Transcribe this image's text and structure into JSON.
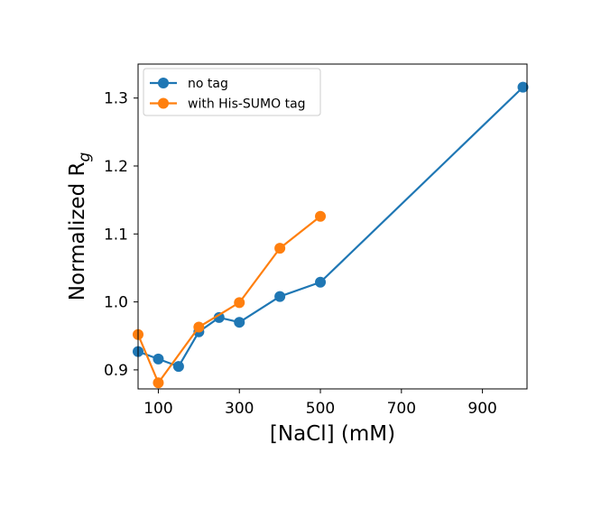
{
  "chart_data": {
    "type": "line",
    "xlabel": "[NaCl] (mM)",
    "ylabel_main": "Normalized R",
    "ylabel_sub": "g",
    "xlim": [
      50,
      1010
    ],
    "ylim": [
      0.872,
      1.35
    ],
    "xticks": [
      100,
      300,
      500,
      700,
      900
    ],
    "yticks": [
      0.9,
      1.0,
      1.1,
      1.2,
      1.3
    ],
    "ytick_labels": [
      "0.9",
      "1.0",
      "1.1",
      "1.2",
      "1.3"
    ],
    "legend_position": "upper-left",
    "series": [
      {
        "name": "no tag",
        "color": "#1f77b4",
        "x": [
          50,
          100,
          150,
          200,
          250,
          300,
          400,
          500,
          1000
        ],
        "y": [
          0.927,
          0.916,
          0.905,
          0.956,
          0.977,
          0.97,
          1.008,
          1.029,
          1.316
        ]
      },
      {
        "name": "with His-SUMO tag",
        "color": "#ff7f0e",
        "x": [
          50,
          100,
          200,
          300,
          400,
          500
        ],
        "y": [
          0.952,
          0.881,
          0.963,
          0.999,
          1.079,
          1.126
        ]
      }
    ]
  }
}
